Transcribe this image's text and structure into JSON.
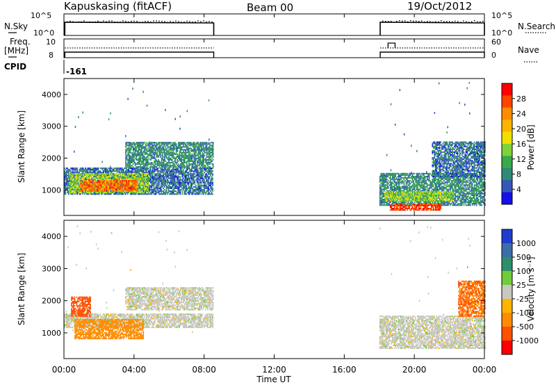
{
  "header": {
    "station": "Kapuskasing (fitACF)",
    "beam": "Beam 00",
    "date": "19/Oct/2012"
  },
  "strips": {
    "nsky_label": "N.Sky",
    "nsky_ticks": [
      "10^5",
      "10^0"
    ],
    "nsearch_label": "N.Search",
    "nsearch_ticks": [
      "10^5",
      "10^0"
    ],
    "freq_label_1": "Freq.",
    "freq_label_2": "[MHz]",
    "freq_ticks": [
      "10",
      "8"
    ],
    "nave_label": "Nave",
    "nave_ticks": [
      "60",
      "0"
    ],
    "cpid_label": "CPID",
    "cpid_value": "-161"
  },
  "x_axis": {
    "label": "Time UT",
    "ticks": [
      "00:00",
      "04:00",
      "08:00",
      "12:00",
      "16:00",
      "20:00",
      "00:00"
    ],
    "tick_hours": [
      0,
      4,
      8,
      12,
      16,
      20,
      24
    ]
  },
  "power_colorbar": {
    "label": "Power [dB]",
    "ticks": [
      "28",
      "24",
      "20",
      "16",
      "12",
      "8",
      "4"
    ],
    "colors": [
      "#ff0000",
      "#ff4400",
      "#ff8c00",
      "#ffb400",
      "#f0e000",
      "#7ed33a",
      "#3aa94a",
      "#2f8a78",
      "#3558b8",
      "#1410e8"
    ]
  },
  "velocity_colorbar": {
    "label": "Velocity [m s⁻¹]",
    "ticks": [
      "1000",
      "500",
      "100",
      "25",
      "-25",
      "-100",
      "-500",
      "-1000"
    ],
    "colors": [
      "#1f3ccf",
      "#3a6ea8",
      "#2f8e6a",
      "#6fcc3c",
      "#c8c8c0",
      "#ffb400",
      "#ff8c00",
      "#ff5000",
      "#ff0000"
    ]
  },
  "chart_data": [
    {
      "type": "line",
      "panel": "N.Sky / N.Search",
      "x_unit": "hours UT",
      "xlim": [
        0,
        24
      ],
      "series": [
        {
          "name": "N.Sky",
          "segments": [
            [
              0.05,
              8.55
            ],
            [
              18.05,
              24.0
            ]
          ]
        },
        {
          "name": "N.Search",
          "segments": [
            [
              0.05,
              8.55
            ],
            [
              18.05,
              24.0
            ]
          ]
        }
      ]
    },
    {
      "type": "line",
      "panel": "Freq. [MHz] / Nave",
      "x_unit": "hours UT",
      "xlim": [
        0,
        24
      ],
      "series": [
        {
          "name": "Freq.",
          "segments": [
            [
              0.05,
              8.55
            ],
            [
              18.05,
              24.0
            ]
          ]
        },
        {
          "name": "Nave",
          "segments": [
            [
              0.05,
              8.55
            ],
            [
              18.05,
              24.0
            ]
          ]
        }
      ]
    },
    {
      "type": "heatmap",
      "panel": "Power",
      "x_unit": "hours UT",
      "xlabel": "Time UT",
      "ylabel": "Slant Range [km]",
      "xlim": [
        0,
        24
      ],
      "ylim": [
        200,
        4500
      ],
      "yticks": [
        1000,
        2000,
        3000,
        4000
      ],
      "colorbar": {
        "label": "Power [dB]",
        "range": [
          0,
          30
        ],
        "ticks": [
          4,
          8,
          12,
          16,
          20,
          24,
          28
        ]
      },
      "regions": [
        {
          "t": [
            0.0,
            8.5
          ],
          "r": [
            850,
            1700
          ],
          "value": 6
        },
        {
          "t": [
            0.3,
            4.8
          ],
          "r": [
            900,
            1500
          ],
          "value": 14
        },
        {
          "t": [
            0.9,
            4.2
          ],
          "r": [
            950,
            1300
          ],
          "value": 24
        },
        {
          "t": [
            3.5,
            8.5
          ],
          "r": [
            1700,
            2500
          ],
          "value": 8
        },
        {
          "t": [
            18.0,
            24.0
          ],
          "r": [
            500,
            1500
          ],
          "value": 8
        },
        {
          "t": [
            18.3,
            22.2
          ],
          "r": [
            650,
            950
          ],
          "value": 14
        },
        {
          "t": [
            18.6,
            21.5
          ],
          "r": [
            350,
            550
          ],
          "value": 26
        },
        {
          "t": [
            21.0,
            24.0
          ],
          "r": [
            1400,
            2500
          ],
          "value": 6
        }
      ]
    },
    {
      "type": "heatmap",
      "panel": "Velocity",
      "x_unit": "hours UT",
      "xlabel": "Time UT",
      "ylabel": "Slant Range [km]",
      "xlim": [
        0,
        24
      ],
      "ylim": [
        200,
        4500
      ],
      "yticks": [
        1000,
        2000,
        3000,
        4000
      ],
      "colorbar": {
        "label": "Velocity [m s⁻¹]",
        "range": [
          -1000,
          1000
        ],
        "ticks": [
          -1000,
          -500,
          -100,
          -25,
          25,
          100,
          500,
          1000
        ]
      },
      "regions": [
        {
          "t": [
            0.0,
            8.5
          ],
          "r": [
            1150,
            1600
          ],
          "value": 0
        },
        {
          "t": [
            3.5,
            8.5
          ],
          "r": [
            1700,
            2400
          ],
          "value": 0
        },
        {
          "t": [
            0.6,
            4.5
          ],
          "r": [
            800,
            1400
          ],
          "value": -150
        },
        {
          "t": [
            0.4,
            1.5
          ],
          "r": [
            1500,
            2100
          ],
          "value": -400
        },
        {
          "t": [
            18.0,
            24.0
          ],
          "r": [
            500,
            1500
          ],
          "value": 0
        },
        {
          "t": [
            22.5,
            24.0
          ],
          "r": [
            1500,
            2600
          ],
          "value": -300
        }
      ]
    }
  ]
}
